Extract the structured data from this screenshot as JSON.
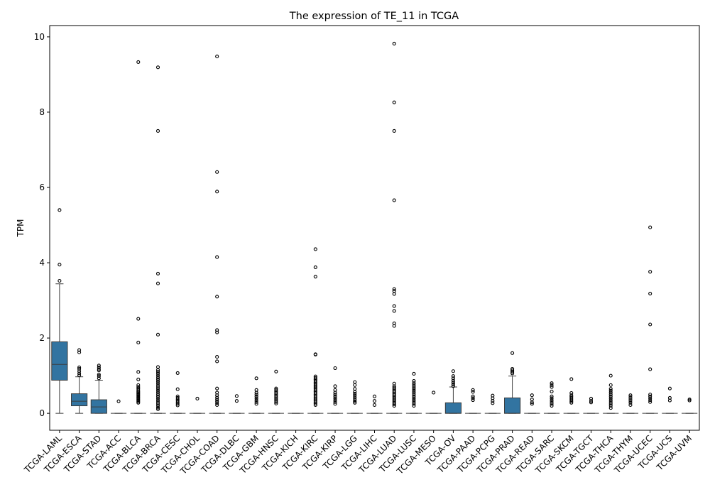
{
  "chart_data": {
    "type": "boxplot",
    "title": "The expression of TE_11 in TCGA",
    "xlabel": "",
    "ylabel": "TPM",
    "ylim": [
      -0.45,
      10.3
    ],
    "yticks": [
      0,
      2,
      4,
      6,
      8,
      10
    ],
    "grid": false,
    "legend": "none",
    "box_color": "#3274a1",
    "edge_color": "#3d3d3d",
    "categories": [
      "TCGA-LAML",
      "TCGA-ESCA",
      "TCGA-STAD",
      "TCGA-ACC",
      "TCGA-BLCA",
      "TCGA-BRCA",
      "TCGA-CESC",
      "TCGA-CHOL",
      "TCGA-COAD",
      "TCGA-DLBC",
      "TCGA-GBM",
      "TCGA-HNSC",
      "TCGA-KICH",
      "TCGA-KIRC",
      "TCGA-KIRP",
      "TCGA-LGG",
      "TCGA-LIHC",
      "TCGA-LUAD",
      "TCGA-LUSC",
      "TCGA-MESO",
      "TCGA-OV",
      "TCGA-PAAD",
      "TCGA-PCPG",
      "TCGA-PRAD",
      "TCGA-READ",
      "TCGA-SARC",
      "TCGA-SKCM",
      "TCGA-TGCT",
      "TCGA-THCA",
      "TCGA-THYM",
      "TCGA-UCEC",
      "TCGA-UCS",
      "TCGA-UVM"
    ],
    "boxes": [
      {
        "q1": 0.88,
        "median": 1.3,
        "q3": 1.9,
        "whislo": 0,
        "whishi": 3.44,
        "fliers": [
          5.4,
          3.95,
          3.52
        ]
      },
      {
        "q1": 0.2,
        "median": 0.32,
        "q3": 0.52,
        "whislo": 0,
        "whishi": 0.97,
        "fliers": [
          1.68,
          1.62,
          1.22,
          1.18,
          1.12,
          1.06,
          1.01
        ]
      },
      {
        "q1": 0,
        "median": 0.17,
        "q3": 0.36,
        "whislo": 0,
        "whishi": 0.88,
        "fliers": [
          1.27,
          1.22,
          1.17,
          1.14,
          1.03,
          0.99,
          0.93
        ]
      },
      {
        "q1": 0,
        "median": 0,
        "q3": 0,
        "whislo": 0,
        "whishi": 0,
        "fliers": [
          0.32
        ]
      },
      {
        "q1": 0,
        "median": 0,
        "q3": 0,
        "whislo": 0,
        "whishi": 0,
        "fliers": [
          9.33,
          2.51,
          1.88,
          1.1,
          0.9,
          0.75,
          0.7,
          0.66,
          0.62,
          0.58,
          0.55,
          0.52,
          0.49,
          0.46,
          0.43,
          0.4,
          0.37,
          0.34,
          0.31,
          0.28
        ]
      },
      {
        "q1": 0,
        "median": 0,
        "q3": 0,
        "whislo": 0,
        "whishi": 0,
        "fliers": [
          9.19,
          7.5,
          3.71,
          3.45,
          2.09,
          1.23,
          1.15,
          1.1,
          1.05,
          1.0,
          0.95,
          0.9,
          0.85,
          0.8,
          0.75,
          0.7,
          0.65,
          0.6,
          0.55,
          0.5,
          0.45,
          0.4,
          0.35,
          0.3,
          0.25,
          0.2,
          0.15,
          0.11
        ]
      },
      {
        "q1": 0,
        "median": 0,
        "q3": 0,
        "whislo": 0,
        "whishi": 0,
        "fliers": [
          1.07,
          0.64,
          0.45,
          0.41,
          0.37,
          0.33,
          0.29,
          0.25,
          0.21
        ]
      },
      {
        "q1": 0,
        "median": 0,
        "q3": 0,
        "whislo": 0,
        "whishi": 0,
        "fliers": [
          0.39
        ]
      },
      {
        "q1": 0,
        "median": 0,
        "q3": 0,
        "whislo": 0,
        "whishi": 0,
        "fliers": [
          9.48,
          6.41,
          5.89,
          4.15,
          3.1,
          2.21,
          2.15,
          1.5,
          1.38,
          0.66,
          0.55,
          0.48,
          0.42,
          0.37,
          0.32,
          0.27,
          0.22
        ]
      },
      {
        "q1": 0,
        "median": 0,
        "q3": 0,
        "whislo": 0,
        "whishi": 0,
        "fliers": [
          0.46,
          0.33
        ]
      },
      {
        "q1": 0,
        "median": 0,
        "q3": 0,
        "whislo": 0,
        "whishi": 0,
        "fliers": [
          0.93,
          0.62,
          0.55,
          0.5,
          0.45,
          0.4,
          0.35,
          0.3,
          0.25
        ]
      },
      {
        "q1": 0,
        "median": 0,
        "q3": 0,
        "whislo": 0,
        "whishi": 0,
        "fliers": [
          1.11,
          0.66,
          0.62,
          0.58,
          0.54,
          0.5,
          0.46,
          0.42,
          0.38,
          0.34,
          0.3,
          0.26
        ]
      },
      {
        "q1": 0,
        "median": 0,
        "q3": 0,
        "whislo": 0,
        "whishi": 0,
        "fliers": []
      },
      {
        "q1": 0,
        "median": 0,
        "q3": 0,
        "whislo": 0,
        "whishi": 0,
        "fliers": [
          4.36,
          3.88,
          3.63,
          1.57,
          1.56,
          0.98,
          0.94,
          0.9,
          0.86,
          0.82,
          0.78,
          0.74,
          0.7,
          0.66,
          0.62,
          0.58,
          0.54,
          0.5,
          0.46,
          0.42,
          0.38,
          0.34,
          0.3,
          0.26,
          0.22
        ]
      },
      {
        "q1": 0,
        "median": 0,
        "q3": 0,
        "whislo": 0,
        "whishi": 0,
        "fliers": [
          1.2,
          0.72,
          0.62,
          0.55,
          0.5,
          0.45,
          0.4,
          0.35,
          0.3,
          0.25
        ]
      },
      {
        "q1": 0,
        "median": 0,
        "q3": 0,
        "whislo": 0,
        "whishi": 0,
        "fliers": [
          0.83,
          0.75,
          0.65,
          0.57,
          0.52,
          0.47,
          0.42,
          0.37,
          0.32,
          0.28
        ]
      },
      {
        "q1": 0,
        "median": 0,
        "q3": 0,
        "whislo": 0,
        "whishi": 0,
        "fliers": [
          0.45,
          0.33,
          0.22
        ]
      },
      {
        "q1": 0,
        "median": 0,
        "q3": 0,
        "whislo": 0,
        "whishi": 0,
        "fliers": [
          9.82,
          8.26,
          7.5,
          5.66,
          3.3,
          3.25,
          3.17,
          2.85,
          2.72,
          2.39,
          2.32,
          0.79,
          0.72,
          0.68,
          0.64,
          0.6,
          0.56,
          0.52,
          0.48,
          0.44,
          0.4,
          0.36,
          0.32,
          0.28,
          0.24,
          0.2
        ]
      },
      {
        "q1": 0,
        "median": 0,
        "q3": 0,
        "whislo": 0,
        "whishi": 0,
        "fliers": [
          1.05,
          0.86,
          0.8,
          0.75,
          0.7,
          0.65,
          0.6,
          0.55,
          0.5,
          0.45,
          0.4,
          0.35,
          0.3,
          0.25,
          0.2
        ]
      },
      {
        "q1": 0,
        "median": 0,
        "q3": 0,
        "whislo": 0,
        "whishi": 0,
        "fliers": [
          0.55
        ]
      },
      {
        "q1": 0,
        "median": 0,
        "q3": 0.28,
        "whislo": 0,
        "whishi": 0.7,
        "fliers": [
          1.12,
          0.99,
          0.93,
          0.87,
          0.82,
          0.77,
          0.72
        ]
      },
      {
        "q1": 0,
        "median": 0,
        "q3": 0,
        "whislo": 0,
        "whishi": 0,
        "fliers": [
          0.62,
          0.57,
          0.45,
          0.4,
          0.35
        ]
      },
      {
        "q1": 0,
        "median": 0,
        "q3": 0,
        "whislo": 0,
        "whishi": 0,
        "fliers": [
          0.47,
          0.4,
          0.33,
          0.27
        ]
      },
      {
        "q1": 0,
        "median": 0,
        "q3": 0.41,
        "whislo": 0,
        "whishi": 0.99,
        "fliers": [
          1.6,
          1.18,
          1.14,
          1.1,
          1.06
        ]
      },
      {
        "q1": 0,
        "median": 0,
        "q3": 0,
        "whislo": 0,
        "whishi": 0,
        "fliers": [
          0.48,
          0.37,
          0.29,
          0.25
        ]
      },
      {
        "q1": 0,
        "median": 0,
        "q3": 0,
        "whislo": 0,
        "whishi": 0,
        "fliers": [
          0.8,
          0.75,
          0.7,
          0.58,
          0.45,
          0.4,
          0.35,
          0.3,
          0.25,
          0.2
        ]
      },
      {
        "q1": 0,
        "median": 0,
        "q3": 0,
        "whislo": 0,
        "whishi": 0,
        "fliers": [
          0.91,
          0.54,
          0.48,
          0.44,
          0.4,
          0.36,
          0.32,
          0.28
        ]
      },
      {
        "q1": 0,
        "median": 0,
        "q3": 0,
        "whislo": 0,
        "whishi": 0,
        "fliers": [
          0.39,
          0.33,
          0.29
        ]
      },
      {
        "q1": 0,
        "median": 0,
        "q3": 0,
        "whislo": 0,
        "whishi": 0,
        "fliers": [
          1.0,
          0.75,
          0.65,
          0.6,
          0.55,
          0.5,
          0.45,
          0.4,
          0.35,
          0.3,
          0.25,
          0.2,
          0.14
        ]
      },
      {
        "q1": 0,
        "median": 0,
        "q3": 0,
        "whislo": 0,
        "whishi": 0,
        "fliers": [
          0.48,
          0.43,
          0.38,
          0.33,
          0.28,
          0.22
        ]
      },
      {
        "q1": 0,
        "median": 0,
        "q3": 0,
        "whislo": 0,
        "whishi": 0,
        "fliers": [
          4.94,
          3.76,
          3.18,
          2.36,
          1.17,
          0.5,
          0.45,
          0.4,
          0.35,
          0.3
        ]
      },
      {
        "q1": 0,
        "median": 0,
        "q3": 0,
        "whislo": 0,
        "whishi": 0,
        "fliers": [
          0.66,
          0.41,
          0.34
        ]
      },
      {
        "q1": 0,
        "median": 0,
        "q3": 0,
        "whislo": 0,
        "whishi": 0,
        "fliers": [
          0.37,
          0.34
        ]
      }
    ]
  }
}
